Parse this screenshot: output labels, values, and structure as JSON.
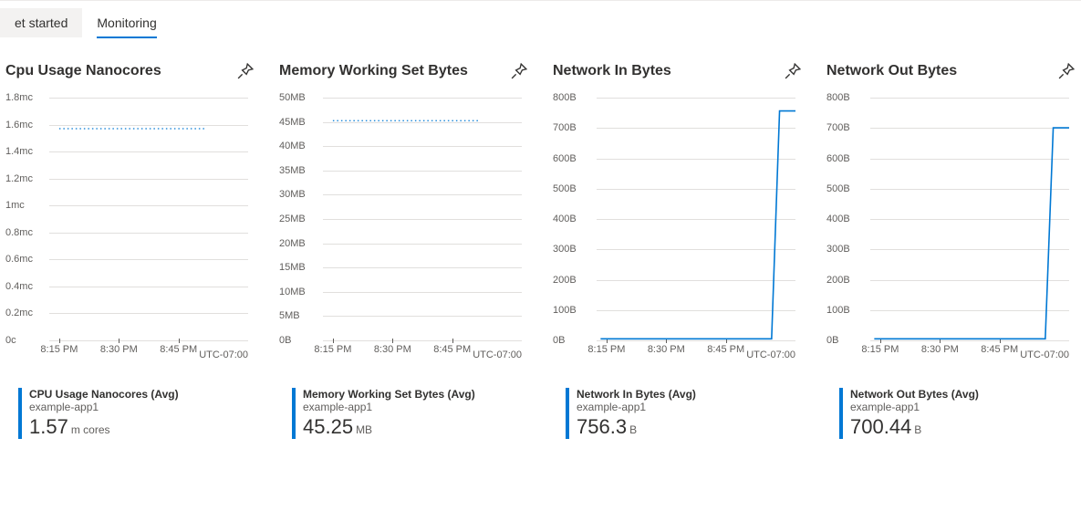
{
  "tabs": [
    {
      "label": "et started",
      "active": false
    },
    {
      "label": "Monitoring",
      "active": true
    }
  ],
  "timezone": "UTC-07:00",
  "x_ticks": [
    "8:15 PM",
    "8:30 PM",
    "8:45 PM"
  ],
  "series_color": "#0078d4",
  "grid_color": "#e1dfdd",
  "panels": [
    {
      "title": "Cpu Usage Nanocores",
      "y_ticks": [
        "0c",
        "0.2mc",
        "0.4mc",
        "0.6mc",
        "0.8mc",
        "1mc",
        "1.2mc",
        "1.4mc",
        "1.6mc",
        "1.8mc"
      ],
      "y_values": [
        0,
        0.2,
        0.4,
        0.6,
        0.8,
        1.0,
        1.2,
        1.4,
        1.6,
        1.8
      ],
      "y_max": 1.8,
      "series": {
        "style": "dashed",
        "shape": "flat",
        "level": 1.57
      },
      "legend_label": "CPU Usage Nanocores (Avg)",
      "legend_sub": "example-app1",
      "value": "1.57",
      "unit": "m cores"
    },
    {
      "title": "Memory Working Set Bytes",
      "y_ticks": [
        "0B",
        "5MB",
        "10MB",
        "15MB",
        "20MB",
        "25MB",
        "30MB",
        "35MB",
        "40MB",
        "45MB",
        "50MB"
      ],
      "y_values": [
        0,
        5,
        10,
        15,
        20,
        25,
        30,
        35,
        40,
        45,
        50
      ],
      "y_max": 50,
      "series": {
        "style": "dashed",
        "shape": "flat",
        "level": 45.25
      },
      "legend_label": "Memory Working Set Bytes (Avg)",
      "legend_sub": "example-app1",
      "value": "45.25",
      "unit": "MB"
    },
    {
      "title": "Network In Bytes",
      "y_ticks": [
        "0B",
        "100B",
        "200B",
        "300B",
        "400B",
        "500B",
        "600B",
        "700B",
        "800B"
      ],
      "y_values": [
        0,
        100,
        200,
        300,
        400,
        500,
        600,
        700,
        800
      ],
      "y_max": 800,
      "series": {
        "style": "solid",
        "shape": "step",
        "low": 5,
        "high": 756.3,
        "break_x": 0.88
      },
      "legend_label": "Network In Bytes (Avg)",
      "legend_sub": "example-app1",
      "value": "756.3",
      "unit": "B"
    },
    {
      "title": "Network Out Bytes",
      "y_ticks": [
        "0B",
        "100B",
        "200B",
        "300B",
        "400B",
        "500B",
        "600B",
        "700B",
        "800B"
      ],
      "y_values": [
        0,
        100,
        200,
        300,
        400,
        500,
        600,
        700,
        800
      ],
      "y_max": 800,
      "series": {
        "style": "solid",
        "shape": "step",
        "low": 5,
        "high": 700.44,
        "break_x": 0.88
      },
      "legend_label": "Network Out Bytes (Avg)",
      "legend_sub": "example-app1",
      "value": "700.44",
      "unit": "B"
    }
  ]
}
